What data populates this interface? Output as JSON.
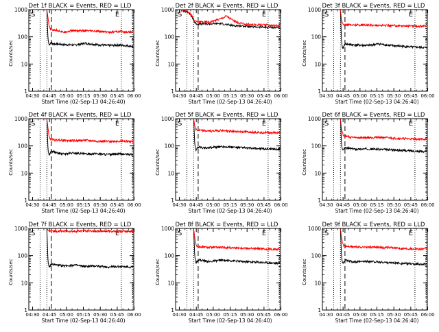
{
  "chart_data": [
    {
      "type": "line",
      "title": "Det 1f BLACK = Events, RED = LLD",
      "xlabel": "Start Time (02-Sep-13 04:26:40)",
      "ylabel": "Counts/sec",
      "y_scale": "log",
      "ylim": [
        1,
        1000
      ],
      "y_ticks": [
        "1",
        "10",
        "100",
        "1000"
      ],
      "x_ticks": [
        "04:30",
        "04:45",
        "05:00",
        "05:15",
        "05:30",
        "05:45",
        "06:00"
      ],
      "xlim_minutes": [
        0,
        93
      ],
      "event_markers": [
        "S",
        "E"
      ],
      "vlines_dotted_minutes": [
        10,
        16,
        82,
        92
      ],
      "vline_dashed_minutes": 20,
      "series": [
        {
          "label": "BLACK = Events",
          "color": "#000000",
          "x": [
            16,
            17,
            18,
            19,
            20,
            21,
            25,
            30,
            40,
            50,
            60,
            70,
            80,
            92
          ],
          "y": [
            1000,
            80,
            50,
            58,
            65,
            55,
            55,
            52,
            50,
            58,
            52,
            48,
            50,
            45
          ]
        },
        {
          "label": "RED = LLD",
          "color": "#ff0000",
          "x": [
            16,
            17,
            18,
            19,
            20,
            21,
            25,
            30,
            40,
            50,
            60,
            70,
            80,
            92
          ],
          "y": [
            1000,
            500,
            250,
            190,
            190,
            180,
            175,
            150,
            170,
            165,
            160,
            150,
            155,
            150
          ]
        }
      ]
    },
    {
      "type": "line",
      "title": "Det 2f BLACK = Events, RED = LLD",
      "xlabel": "Start Time (02-Sep-13 04:26:40)",
      "ylabel": "Counts/sec",
      "y_scale": "log",
      "ylim": [
        1,
        1000
      ],
      "y_ticks": [
        "1",
        "10",
        "100",
        "1000"
      ],
      "x_ticks": [
        "04:30",
        "04:45",
        "05:00",
        "05:15",
        "05:30",
        "05:45",
        "06:00"
      ],
      "xlim_minutes": [
        0,
        93
      ],
      "event_markers": [
        "S",
        "E"
      ],
      "vlines_dotted_minutes": [
        10,
        16,
        82,
        92
      ],
      "vline_dashed_minutes": 20,
      "series": [
        {
          "label": "BLACK = Events",
          "color": "#000000",
          "x": [
            3,
            8,
            12,
            15,
            17,
            19,
            20,
            22,
            30,
            40,
            50,
            60,
            70,
            80,
            92
          ],
          "y": [
            1000,
            900,
            750,
            500,
            330,
            300,
            300,
            300,
            300,
            310,
            260,
            250,
            230,
            225,
            220
          ]
        },
        {
          "label": "RED = LLD",
          "color": "#ff0000",
          "x": [
            3,
            8,
            12,
            15,
            17,
            19,
            20,
            22,
            30,
            40,
            45,
            50,
            55,
            60,
            70,
            80,
            92
          ],
          "y": [
            1000,
            950,
            800,
            550,
            370,
            360,
            360,
            360,
            350,
            460,
            580,
            430,
            330,
            300,
            280,
            270,
            260
          ]
        }
      ]
    },
    {
      "type": "line",
      "title": "Det 3f BLACK = Events, RED = LLD",
      "xlabel": "Start Time (02-Sep-13 04:26:40)",
      "ylabel": "Counts/sec",
      "y_scale": "log",
      "ylim": [
        1,
        1000
      ],
      "y_ticks": [
        "1",
        "10",
        "100",
        "1000"
      ],
      "x_ticks": [
        "04:30",
        "04:45",
        "05:00",
        "05:15",
        "05:30",
        "05:45",
        "06:00"
      ],
      "xlim_minutes": [
        0,
        93
      ],
      "event_markers": [
        "S",
        "E"
      ],
      "vlines_dotted_minutes": [
        10,
        16,
        82,
        92
      ],
      "vline_dashed_minutes": 20,
      "series": [
        {
          "label": "BLACK = Events",
          "color": "#000000",
          "x": [
            16,
            17,
            18,
            19,
            20,
            25,
            30,
            40,
            50,
            60,
            70,
            80,
            92
          ],
          "y": [
            1000,
            60,
            35,
            45,
            55,
            52,
            50,
            48,
            55,
            48,
            45,
            42,
            40
          ]
        },
        {
          "label": "RED = LLD",
          "color": "#ff0000",
          "x": [
            16,
            17,
            18,
            19,
            20,
            25,
            30,
            40,
            50,
            60,
            70,
            80,
            92
          ],
          "y": [
            1000,
            400,
            300,
            280,
            285,
            270,
            275,
            270,
            265,
            260,
            255,
            250,
            245
          ]
        }
      ]
    },
    {
      "type": "line",
      "title": "Det 4f BLACK = Events, RED = LLD",
      "xlabel": "Start Time (02-Sep-13 04:26:40)",
      "ylabel": "Counts/sec",
      "y_scale": "log",
      "ylim": [
        1,
        1000
      ],
      "y_ticks": [
        "1",
        "10",
        "100",
        "1000"
      ],
      "x_ticks": [
        "04:30",
        "04:45",
        "05:00",
        "05:15",
        "05:30",
        "05:45",
        "06:00"
      ],
      "xlim_minutes": [
        0,
        93
      ],
      "event_markers": [
        "S",
        "E"
      ],
      "vlines_dotted_minutes": [
        10,
        16,
        82,
        92
      ],
      "vline_dashed_minutes": 20,
      "series": [
        {
          "label": "BLACK = Events",
          "color": "#000000",
          "x": [
            16,
            17,
            18,
            19,
            20,
            25,
            30,
            40,
            50,
            60,
            70,
            80,
            92
          ],
          "y": [
            1000,
            70,
            45,
            55,
            65,
            55,
            50,
            55,
            50,
            52,
            48,
            50,
            48
          ]
        },
        {
          "label": "RED = LLD",
          "color": "#ff0000",
          "x": [
            16,
            17,
            18,
            19,
            20,
            25,
            30,
            40,
            50,
            60,
            70,
            80,
            92
          ],
          "y": [
            1000,
            450,
            220,
            180,
            170,
            165,
            160,
            155,
            160,
            150,
            145,
            150,
            145
          ]
        }
      ]
    },
    {
      "type": "line",
      "title": "Det 5f BLACK = Events, RED = LLD",
      "xlabel": "Start Time (02-Sep-13 04:26:40)",
      "ylabel": "Counts/sec",
      "y_scale": "log",
      "ylim": [
        1,
        1000
      ],
      "y_ticks": [
        "1",
        "10",
        "100",
        "1000"
      ],
      "x_ticks": [
        "04:30",
        "04:45",
        "05:00",
        "05:15",
        "05:30",
        "05:45",
        "06:00"
      ],
      "xlim_minutes": [
        0,
        93
      ],
      "event_markers": [
        "S",
        "E"
      ],
      "vlines_dotted_minutes": [
        10,
        16,
        82,
        92
      ],
      "vline_dashed_minutes": 20,
      "series": [
        {
          "label": "BLACK = Events",
          "color": "#000000",
          "x": [
            16,
            17,
            18,
            19,
            20,
            25,
            30,
            40,
            50,
            60,
            70,
            80,
            92
          ],
          "y": [
            1000,
            110,
            70,
            80,
            90,
            85,
            85,
            95,
            90,
            85,
            80,
            78,
            75
          ]
        },
        {
          "label": "RED = LLD",
          "color": "#ff0000",
          "x": [
            16,
            17,
            18,
            19,
            20,
            25,
            30,
            40,
            50,
            60,
            70,
            80,
            92
          ],
          "y": [
            1000,
            550,
            400,
            380,
            375,
            360,
            350,
            370,
            340,
            330,
            320,
            310,
            300
          ]
        }
      ]
    },
    {
      "type": "line",
      "title": "Det 6f BLACK = Events, RED = LLD",
      "xlabel": "Start Time (02-Sep-13 04:26:40)",
      "ylabel": "Counts/sec",
      "y_scale": "log",
      "ylim": [
        1,
        1000
      ],
      "y_ticks": [
        "1",
        "10",
        "100",
        "1000"
      ],
      "x_ticks": [
        "04:30",
        "04:45",
        "05:00",
        "05:15",
        "05:30",
        "05:45",
        "06:00"
      ],
      "xlim_minutes": [
        0,
        93
      ],
      "event_markers": [
        "S",
        "E"
      ],
      "vlines_dotted_minutes": [
        10,
        16,
        82,
        92
      ],
      "vline_dashed_minutes": 20,
      "series": [
        {
          "label": "BLACK = Events",
          "color": "#000000",
          "x": [
            16,
            17,
            18,
            19,
            20,
            25,
            30,
            40,
            50,
            60,
            70,
            80,
            92
          ],
          "y": [
            1000,
            100,
            65,
            75,
            85,
            80,
            75,
            78,
            75,
            72,
            68,
            65,
            62
          ]
        },
        {
          "label": "RED = LLD",
          "color": "#ff0000",
          "x": [
            16,
            17,
            18,
            19,
            20,
            25,
            30,
            40,
            50,
            60,
            70,
            80,
            92
          ],
          "y": [
            1000,
            400,
            280,
            240,
            230,
            210,
            200,
            200,
            210,
            195,
            185,
            180,
            175
          ]
        }
      ]
    },
    {
      "type": "line",
      "title": "Det 7f BLACK = Events, RED = LLD",
      "xlabel": "Start Time (02-Sep-13 04:26:40)",
      "ylabel": "Counts/sec",
      "y_scale": "log",
      "ylim": [
        1,
        1000
      ],
      "y_ticks": [
        "1",
        "10",
        "100",
        "1000"
      ],
      "x_ticks": [
        "04:30",
        "04:45",
        "05:00",
        "05:15",
        "05:30",
        "05:45",
        "06:00"
      ],
      "xlim_minutes": [
        0,
        93
      ],
      "event_markers": [
        "S",
        "E"
      ],
      "vlines_dotted_minutes": [
        10,
        16,
        82,
        92
      ],
      "vline_dashed_minutes": 20,
      "series": [
        {
          "label": "BLACK = Events",
          "color": "#000000",
          "x": [
            16,
            17,
            18,
            19,
            20,
            25,
            30,
            40,
            50,
            60,
            70,
            80,
            92
          ],
          "y": [
            1000,
            60,
            38,
            42,
            48,
            45,
            42,
            45,
            40,
            42,
            38,
            40,
            38
          ]
        },
        {
          "label": "RED = LLD",
          "color": "#ff0000",
          "x": [
            16,
            17,
            18,
            19,
            20,
            25,
            30,
            40,
            50,
            60,
            70,
            80,
            92
          ],
          "y": [
            1000,
            850,
            800,
            780,
            800,
            790,
            800,
            780,
            820,
            790,
            800,
            780,
            790
          ]
        }
      ]
    },
    {
      "type": "line",
      "title": "Det 8f BLACK = Events, RED = LLD",
      "xlabel": "Start Time (02-Sep-13 04:26:40)",
      "ylabel": "Counts/sec",
      "y_scale": "log",
      "ylim": [
        1,
        1000
      ],
      "y_ticks": [
        "1",
        "10",
        "100",
        "1000"
      ],
      "x_ticks": [
        "04:30",
        "04:45",
        "05:00",
        "05:15",
        "05:30",
        "05:45",
        "06:00"
      ],
      "xlim_minutes": [
        0,
        93
      ],
      "event_markers": [
        "S",
        "E"
      ],
      "vlines_dotted_minutes": [
        10,
        16,
        82,
        92
      ],
      "vline_dashed_minutes": 20,
      "series": [
        {
          "label": "BLACK = Events",
          "color": "#000000",
          "x": [
            16,
            17,
            18,
            19,
            20,
            25,
            30,
            40,
            50,
            60,
            70,
            80,
            92
          ],
          "y": [
            1000,
            90,
            55,
            62,
            70,
            65,
            60,
            68,
            65,
            60,
            58,
            55,
            52
          ]
        },
        {
          "label": "RED = LLD",
          "color": "#ff0000",
          "x": [
            16,
            17,
            18,
            19,
            20,
            25,
            30,
            40,
            50,
            60,
            70,
            80,
            92
          ],
          "y": [
            1000,
            450,
            270,
            220,
            210,
            205,
            200,
            200,
            195,
            190,
            180,
            175,
            170
          ]
        }
      ]
    },
    {
      "type": "line",
      "title": "Det 9f BLACK = Events, RED = LLD",
      "xlabel": "Start Time (02-Sep-13 04:26:40)",
      "ylabel": "Counts/sec",
      "y_scale": "log",
      "ylim": [
        1,
        1000
      ],
      "y_ticks": [
        "1",
        "10",
        "100",
        "1000"
      ],
      "x_ticks": [
        "04:30",
        "04:45",
        "05:00",
        "05:15",
        "05:30",
        "05:45",
        "06:00"
      ],
      "xlim_minutes": [
        0,
        93
      ],
      "event_markers": [
        "S",
        "E"
      ],
      "vlines_dotted_minutes": [
        10,
        16,
        82,
        92
      ],
      "vline_dashed_minutes": 20,
      "series": [
        {
          "label": "BLACK = Events",
          "color": "#000000",
          "x": [
            16,
            17,
            18,
            19,
            20,
            25,
            30,
            40,
            50,
            60,
            70,
            80,
            92
          ],
          "y": [
            1000,
            80,
            52,
            60,
            68,
            62,
            58,
            62,
            58,
            55,
            52,
            50,
            48
          ]
        },
        {
          "label": "RED = LLD",
          "color": "#ff0000",
          "x": [
            16,
            17,
            18,
            19,
            20,
            25,
            30,
            40,
            50,
            60,
            70,
            80,
            92
          ],
          "y": [
            1000,
            450,
            270,
            230,
            225,
            215,
            210,
            205,
            200,
            195,
            185,
            180,
            175
          ]
        }
      ]
    }
  ]
}
